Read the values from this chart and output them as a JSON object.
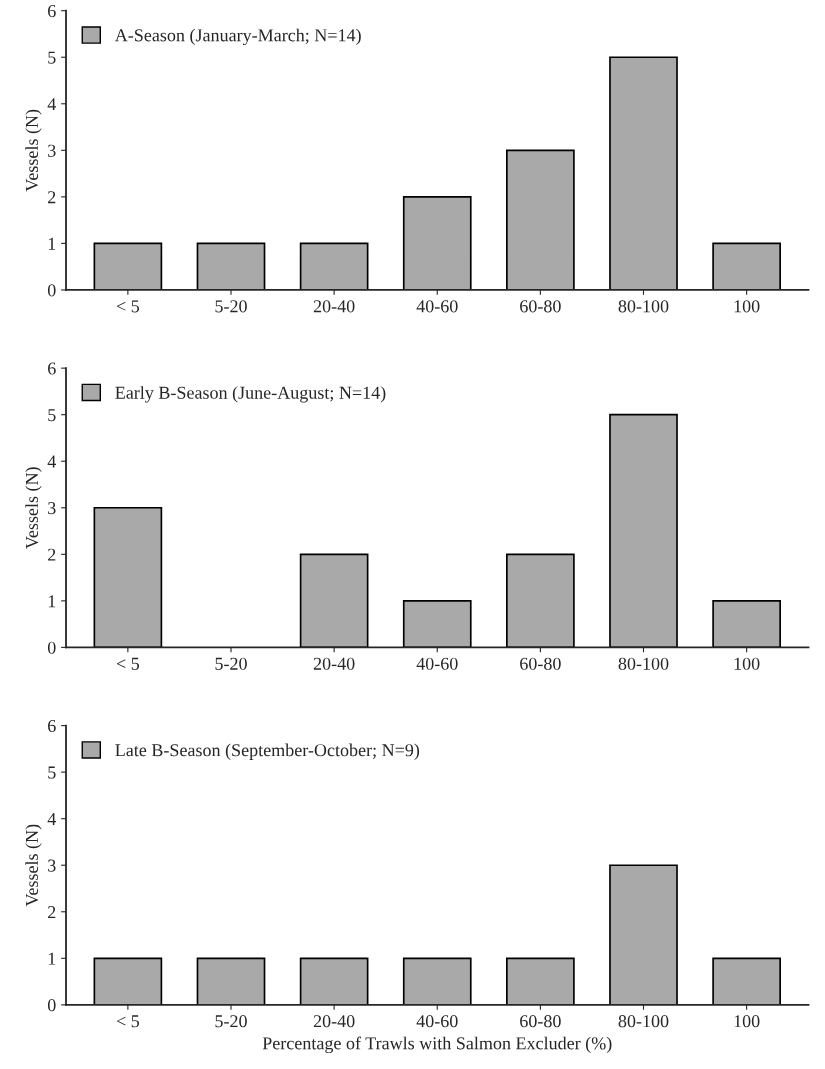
{
  "chart_data": [
    {
      "type": "bar",
      "categories": [
        "< 5",
        "5-20",
        "20-40",
        "40-60",
        "60-80",
        "80-100",
        "100"
      ],
      "ylabel": "Vessels (N)",
      "ylim": [
        0,
        6
      ],
      "yticks": [
        0,
        1,
        2,
        3,
        4,
        5,
        6
      ],
      "legend": "top left",
      "grid": false,
      "series": [
        {
          "name": "A-Season (January-March; N=14)",
          "color": "#a9a9a9",
          "values": [
            1,
            1,
            1,
            2,
            3,
            5,
            1
          ]
        }
      ]
    },
    {
      "type": "bar",
      "categories": [
        "< 5",
        "5-20",
        "20-40",
        "40-60",
        "60-80",
        "80-100",
        "100"
      ],
      "ylabel": "Vessels (N)",
      "ylim": [
        0,
        6
      ],
      "yticks": [
        0,
        1,
        2,
        3,
        4,
        5,
        6
      ],
      "legend": "top left",
      "grid": false,
      "series": [
        {
          "name": "Early B-Season (June-August; N=14)",
          "color": "#a9a9a9",
          "values": [
            3,
            0,
            2,
            1,
            2,
            5,
            1
          ]
        }
      ]
    },
    {
      "type": "bar",
      "categories": [
        "< 5",
        "5-20",
        "20-40",
        "40-60",
        "60-80",
        "80-100",
        "100"
      ],
      "ylabel": "Vessels (N)",
      "xlabel": "Percentage of Trawls with Salmon Excluder (%)",
      "ylim": [
        0,
        6
      ],
      "yticks": [
        0,
        1,
        2,
        3,
        4,
        5,
        6
      ],
      "legend": "top left",
      "grid": false,
      "series": [
        {
          "name": "Late B-Season (September-October; N=9)",
          "color": "#a9a9a9",
          "values": [
            1,
            1,
            1,
            1,
            1,
            3,
            1
          ]
        }
      ]
    }
  ]
}
